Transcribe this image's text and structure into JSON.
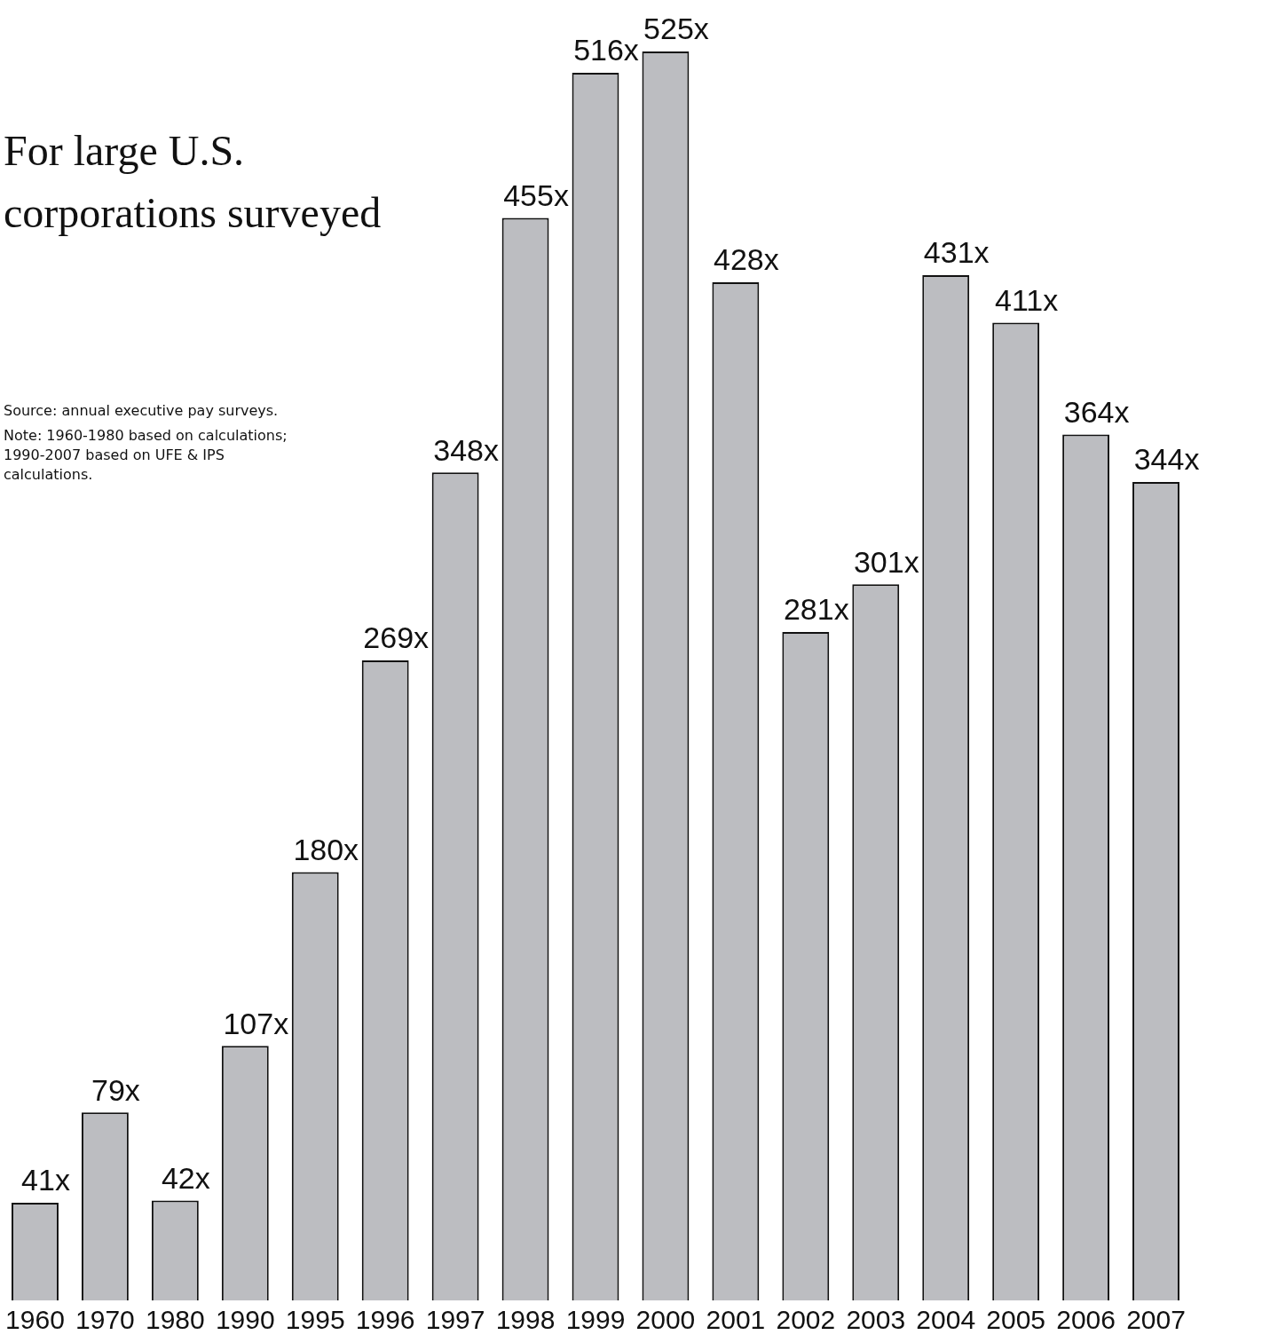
{
  "chart_data": {
    "type": "bar",
    "title": "For large U.S. corporations surveyed",
    "annotations": [
      "Source: annual executive pay surveys.",
      "Note: 1960-1980 based on calculations; 1990-2007 based on UFE  & IPS calculations."
    ],
    "categories": [
      "1960",
      "1970",
      "1980",
      "1990",
      "1995",
      "1996",
      "1997",
      "1998",
      "1999",
      "2000",
      "2001",
      "2002",
      "2003",
      "2004",
      "2005",
      "2006",
      "2007"
    ],
    "values": [
      41,
      79,
      42,
      107,
      180,
      269,
      348,
      455,
      516,
      525,
      428,
      281,
      301,
      431,
      411,
      364,
      344
    ],
    "value_labels": [
      "41x",
      "79x",
      "42x",
      "107x",
      "180x",
      "269x",
      "348x",
      "455x",
      "516x",
      "525x",
      "428x",
      "281x",
      "301x",
      "431x",
      "411x",
      "364x",
      "344x"
    ],
    "color": "#bcbdc1",
    "grid": false,
    "legend": false,
    "tick_labels": "x"
  }
}
